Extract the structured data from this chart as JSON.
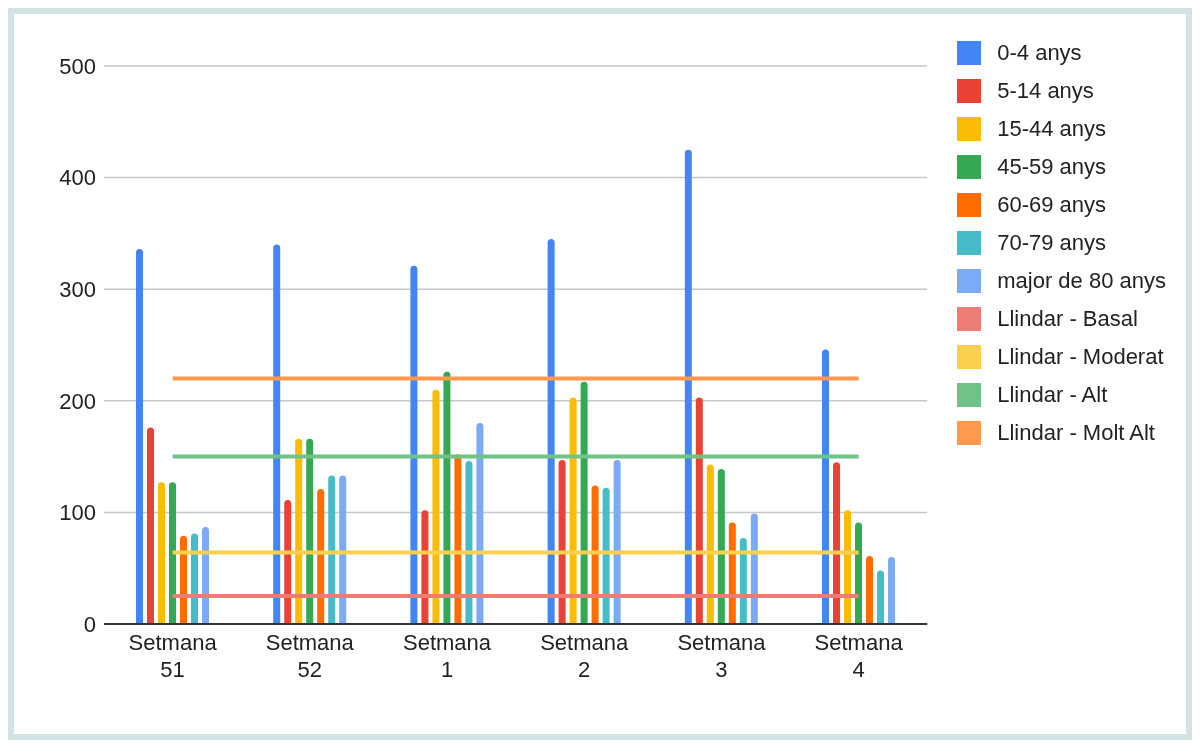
{
  "chart_data": {
    "type": "bar",
    "categories": [
      "Setmana 51",
      "Setmana 52",
      "Setmana 1",
      "Setmana 2",
      "Setmana 3",
      "Setmana 4"
    ],
    "series": [
      {
        "name": "0-4 anys",
        "color": "#4285f4",
        "values": [
          336,
          340,
          321,
          345,
          425,
          246
        ]
      },
      {
        "name": "5-14 anys",
        "color": "#ea4335",
        "values": [
          176,
          111,
          102,
          147,
          203,
          145
        ]
      },
      {
        "name": "15-44 anys",
        "color": "#fbbc04",
        "values": [
          127,
          166,
          210,
          203,
          143,
          102
        ]
      },
      {
        "name": "45-59 anys",
        "color": "#34a853",
        "values": [
          127,
          166,
          226,
          217,
          139,
          91
        ]
      },
      {
        "name": "60-69 anys",
        "color": "#ff6d01",
        "values": [
          79,
          121,
          152,
          124,
          91,
          61
        ]
      },
      {
        "name": "70-79 anys",
        "color": "#46bdc6",
        "values": [
          81,
          133,
          146,
          122,
          77,
          48
        ]
      },
      {
        "name": "major de 80 anys",
        "color": "#7baaf7",
        "values": [
          87,
          133,
          180,
          147,
          99,
          60
        ]
      },
      {
        "name": "Llindar - Basal",
        "color": "#ee7b74",
        "type": "line",
        "values": [
          25,
          25,
          25,
          25,
          25,
          25
        ]
      },
      {
        "name": "Llindar - Moderat",
        "color": "#fcd04f",
        "type": "line",
        "values": [
          64,
          64,
          64,
          64,
          64,
          64
        ]
      },
      {
        "name": "Llindar - Alt",
        "color": "#71c287",
        "type": "line",
        "values": [
          150,
          150,
          150,
          150,
          150,
          150
        ]
      },
      {
        "name": "Llindar - Molt Alt",
        "color": "#ff994d",
        "type": "line",
        "values": [
          220,
          220,
          220,
          220,
          220,
          220
        ]
      }
    ],
    "ylim": [
      0,
      500
    ],
    "yticks": [
      0,
      100,
      200,
      300,
      400,
      500
    ],
    "grid": "y",
    "legend": "top right",
    "marker": "none"
  }
}
